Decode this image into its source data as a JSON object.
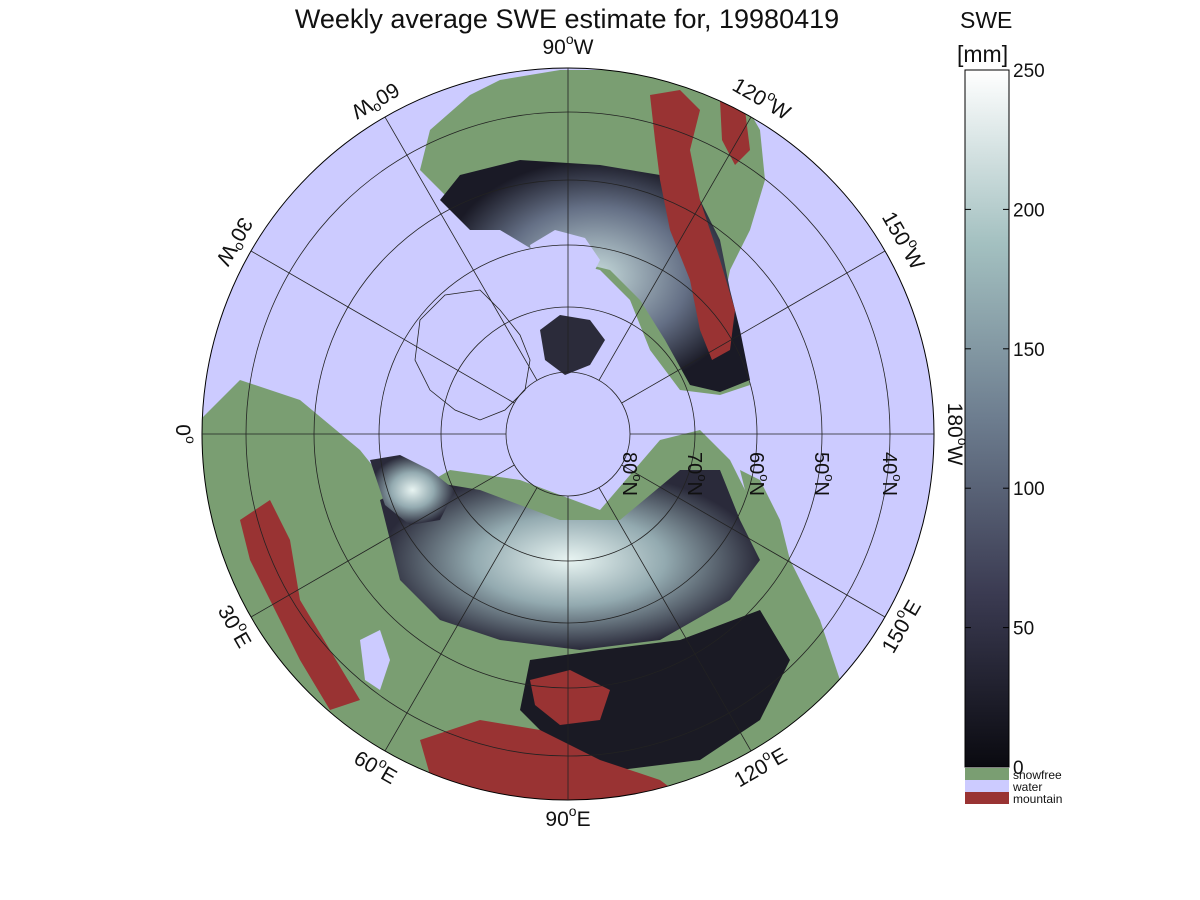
{
  "title": "Weekly average SWE estimate for, 19980419",
  "longitude_labels": [
    {
      "main": "90",
      "sup": "o",
      "suffix": "W"
    },
    {
      "main": "120",
      "sup": "o",
      "suffix": "W"
    },
    {
      "main": "150",
      "sup": "o",
      "suffix": "W"
    },
    {
      "main": "180",
      "sup": "o",
      "suffix": "W"
    },
    {
      "main": "150",
      "sup": "o",
      "suffix": "E"
    },
    {
      "main": "120",
      "sup": "o",
      "suffix": "E"
    },
    {
      "main": "90",
      "sup": "o",
      "suffix": "E"
    },
    {
      "main": "60",
      "sup": "o",
      "suffix": "E"
    },
    {
      "main": "30",
      "sup": "o",
      "suffix": "E"
    },
    {
      "main": "0",
      "sup": "o",
      "suffix": ""
    },
    {
      "main": "30",
      "sup": "o",
      "suffix": "W"
    },
    {
      "main": "60",
      "sup": "o",
      "suffix": "W"
    }
  ],
  "latitude_labels": [
    {
      "main": "80",
      "sup": "o",
      "suffix": "N"
    },
    {
      "main": "70",
      "sup": "o",
      "suffix": "N"
    },
    {
      "main": "60",
      "sup": "o",
      "suffix": "N"
    },
    {
      "main": "50",
      "sup": "o",
      "suffix": "N"
    },
    {
      "main": "40",
      "sup": "o",
      "suffix": "N"
    }
  ],
  "colorbar": {
    "title_line1": "SWE",
    "title_line2": "[mm]",
    "ticks": [
      "0",
      "50",
      "100",
      "150",
      "200",
      "250"
    ],
    "tick_values": [
      0,
      50,
      100,
      150,
      200,
      250
    ],
    "range": [
      0,
      250
    ],
    "colormap": "bone",
    "gradient_stops": [
      "#0a0a10",
      "#3b3b52",
      "#6d7d8f",
      "#a3c0c0",
      "#ffffff"
    ]
  },
  "legend": [
    {
      "label": "snowfree",
      "color": "#7a9e72"
    },
    {
      "label": "water",
      "color": "#cccbff"
    },
    {
      "label": "mountain",
      "color": "#993333"
    }
  ]
}
